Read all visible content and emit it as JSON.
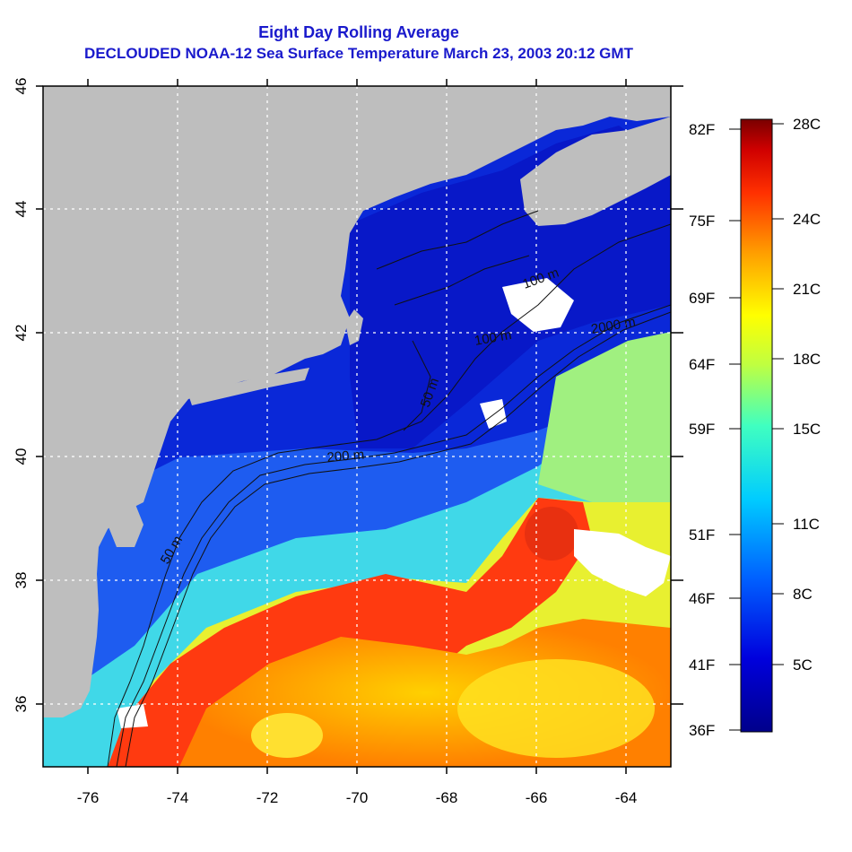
{
  "title": {
    "line1": "Eight Day Rolling Average",
    "line2": "DECLOUDED NOAA-12 Sea Surface Temperature March 23, 2003 20:12 GMT"
  },
  "map": {
    "lon_range": [
      -77,
      -63
    ],
    "lat_range": [
      35,
      46
    ],
    "x_ticks": [
      "-76",
      "-74",
      "-72",
      "-70",
      "-68",
      "-66",
      "-64"
    ],
    "y_ticks": [
      "36",
      "38",
      "40",
      "42",
      "44",
      "46"
    ],
    "land_color": "#bebebe",
    "cloud_color": "#ffffff",
    "contours": [
      "50 m",
      "100 m",
      "200 m",
      "2000 m",
      "50 m",
      "100 m"
    ]
  },
  "colorbar": {
    "celsius": [
      "28C",
      "24C",
      "21C",
      "18C",
      "15C",
      "11C",
      "8C",
      "5C"
    ],
    "fahrenheit": [
      "82F",
      "75F",
      "69F",
      "64F",
      "59F",
      "51F",
      "46F",
      "41F",
      "36F"
    ],
    "colors": [
      "#7a0000",
      "#e00000",
      "#ff7a00",
      "#ffff00",
      "#7fff7f",
      "#00ffff",
      "#0080ff",
      "#0000cc",
      "#00008b"
    ]
  }
}
